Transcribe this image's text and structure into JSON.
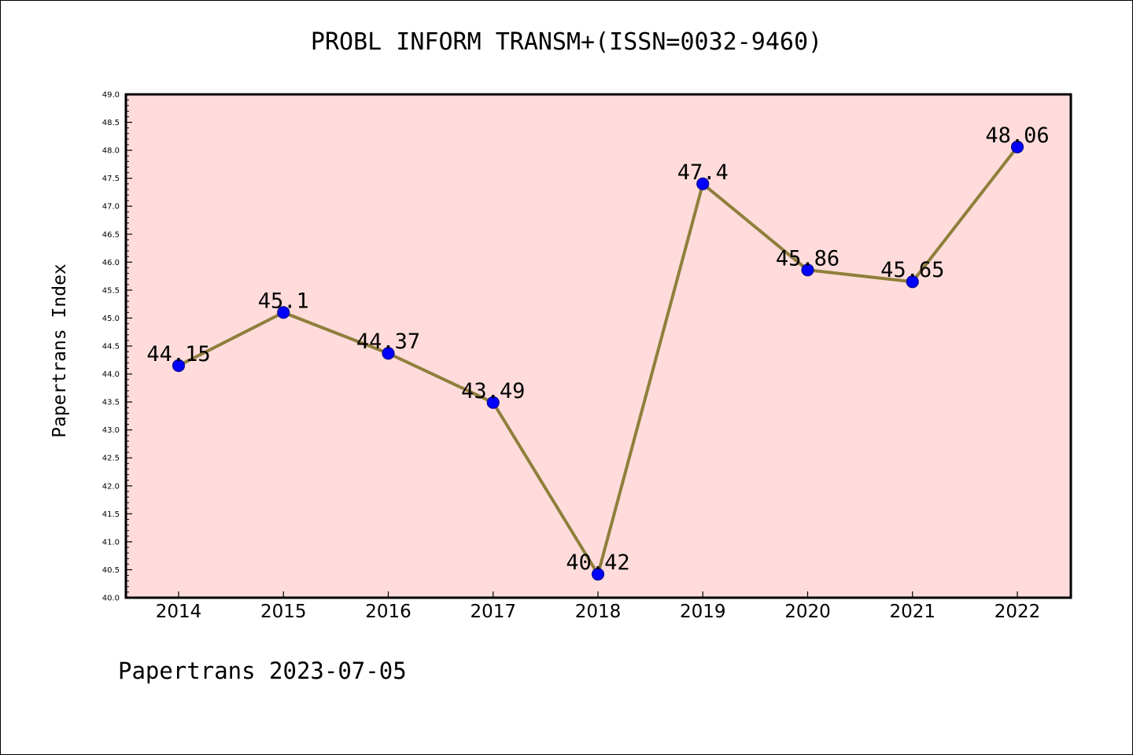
{
  "chart_data": {
    "type": "line",
    "title": "PROBL INFORM TRANSM+(ISSN=0032-9460)",
    "ylabel": "Papertrans Index",
    "xlabel": "",
    "categories": [
      "2014",
      "2015",
      "2016",
      "2017",
      "2018",
      "2019",
      "2020",
      "2021",
      "2022"
    ],
    "series": [
      {
        "values": [
          44.15,
          45.1,
          44.37,
          43.49,
          40.42,
          47.4,
          45.86,
          45.65,
          48.06
        ],
        "labels": [
          "44.15",
          "45.1",
          "44.37",
          "43.49",
          "40.42",
          "47.4",
          "45.86",
          "45.65",
          "48.06"
        ]
      }
    ],
    "ylim": [
      40.0,
      49.0
    ],
    "yticks": [
      "40.0",
      "40.5",
      "41.0",
      "41.5",
      "42.0",
      "42.5",
      "43.0",
      "43.5",
      "44.0",
      "44.5",
      "45.0",
      "45.5",
      "46.0",
      "46.5",
      "47.0",
      "47.5",
      "48.0",
      "48.5",
      "49.0"
    ],
    "grid": false,
    "colors": {
      "plot_background": "#FFDCDB",
      "line": "#8F7F3C",
      "marker": "#0000FF",
      "marker_edge": "#0A0A8C"
    }
  },
  "footer": {
    "text": "Papertrans 2023-07-05"
  }
}
